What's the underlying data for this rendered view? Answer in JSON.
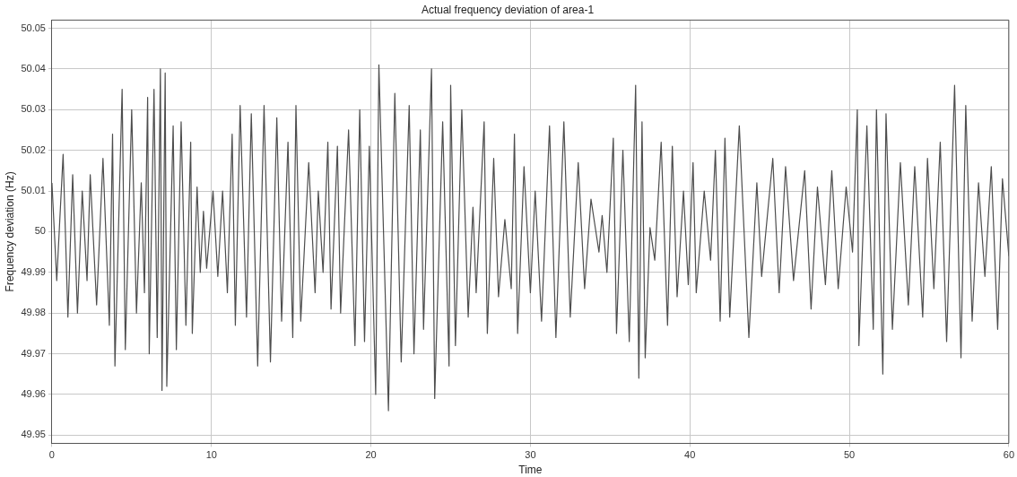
{
  "chart_data": {
    "type": "line",
    "title": "Actual frequency deviation of area-1",
    "xlabel": "Time",
    "ylabel": "Frequency deviation (Hz)",
    "xlim": [
      0,
      60
    ],
    "xticks": [
      0,
      10,
      20,
      30,
      40,
      50,
      60
    ],
    "ylim": [
      49.948,
      50.052
    ],
    "yticks": [
      49.95,
      49.96,
      49.97,
      49.98,
      49.99,
      50,
      50.01,
      50.02,
      50.03,
      50.04,
      50.05
    ],
    "grid": true,
    "legend": false,
    "marker": "none",
    "line_style": "solid",
    "series": [
      {
        "color": "#4d4d4d",
        "x": [
          0,
          0.3,
          0.7,
          1.0,
          1.3,
          1.6,
          1.9,
          2.2,
          2.4,
          2.8,
          3.2,
          3.6,
          3.8,
          3.95,
          4.4,
          4.6,
          5.0,
          5.3,
          5.6,
          5.8,
          6.0,
          6.1,
          6.4,
          6.6,
          6.8,
          6.9,
          7.1,
          7.2,
          7.6,
          7.8,
          8.1,
          8.4,
          8.7,
          8.8,
          9.1,
          9.3,
          9.5,
          9.7,
          10.1,
          10.4,
          10.7,
          11.0,
          11.3,
          11.5,
          11.8,
          12.2,
          12.5,
          12.9,
          13.3,
          13.7,
          14.1,
          14.4,
          14.8,
          15.1,
          15.3,
          15.6,
          16.1,
          16.5,
          16.7,
          17.0,
          17.3,
          17.5,
          17.9,
          18.1,
          18.6,
          19.0,
          19.3,
          19.6,
          19.9,
          20.3,
          20.5,
          21.1,
          21.5,
          21.9,
          22.4,
          22.7,
          23.1,
          23.3,
          23.8,
          24.0,
          24.5,
          24.9,
          25.0,
          25.3,
          25.7,
          26.1,
          26.4,
          26.6,
          27.1,
          27.3,
          27.7,
          28.0,
          28.4,
          28.8,
          29.0,
          29.2,
          29.6,
          30.0,
          30.3,
          30.7,
          31.2,
          31.6,
          32.1,
          32.5,
          33.0,
          33.4,
          33.8,
          34.3,
          34.5,
          34.8,
          35.2,
          35.4,
          35.8,
          36.2,
          36.6,
          36.8,
          37.0,
          37.2,
          37.5,
          37.8,
          38.2,
          38.6,
          38.9,
          39.2,
          39.6,
          39.9,
          40.2,
          40.4,
          40.9,
          41.3,
          41.6,
          41.9,
          42.2,
          42.5,
          43.1,
          43.7,
          44.2,
          44.5,
          45.2,
          45.6,
          46.0,
          46.5,
          47.2,
          47.6,
          48.0,
          48.5,
          48.9,
          49.3,
          49.8,
          50.2,
          50.5,
          50.6,
          51.1,
          51.5,
          51.7,
          52.1,
          52.3,
          52.7,
          53.2,
          53.7,
          54.1,
          54.6,
          54.9,
          55.3,
          55.7,
          56.1,
          56.6,
          57.0,
          57.3,
          57.7,
          58.1,
          58.5,
          58.9,
          59.3,
          59.6,
          60.0
        ],
        "values": [
          50.012,
          49.988,
          50.019,
          49.979,
          50.014,
          49.98,
          50.01,
          49.988,
          50.014,
          49.982,
          50.018,
          49.977,
          50.024,
          49.967,
          50.035,
          49.971,
          50.03,
          49.98,
          50.012,
          49.985,
          50.033,
          49.97,
          50.035,
          49.974,
          50.04,
          49.961,
          50.039,
          49.962,
          50.026,
          49.971,
          50.027,
          49.977,
          50.022,
          49.975,
          50.011,
          49.99,
          50.005,
          49.991,
          50.01,
          49.989,
          50.01,
          49.985,
          50.024,
          49.977,
          50.031,
          49.979,
          50.029,
          49.967,
          50.031,
          49.968,
          50.028,
          49.978,
          50.022,
          49.974,
          50.031,
          49.978,
          50.017,
          49.985,
          50.01,
          49.99,
          50.022,
          49.981,
          50.021,
          49.98,
          50.025,
          49.972,
          50.03,
          49.973,
          50.021,
          49.96,
          50.041,
          49.956,
          50.034,
          49.968,
          50.031,
          49.97,
          50.025,
          49.976,
          50.04,
          49.959,
          50.027,
          49.967,
          50.036,
          49.972,
          50.03,
          49.979,
          50.006,
          49.985,
          50.027,
          49.975,
          50.018,
          49.984,
          50.003,
          49.986,
          50.024,
          49.975,
          50.016,
          49.985,
          50.01,
          49.978,
          50.026,
          49.974,
          50.027,
          49.979,
          50.017,
          49.986,
          50.008,
          49.995,
          50.004,
          49.99,
          50.023,
          49.975,
          50.02,
          49.973,
          50.036,
          49.964,
          50.027,
          49.969,
          50.001,
          49.993,
          50.022,
          49.977,
          50.021,
          49.984,
          50.01,
          49.987,
          50.017,
          49.985,
          50.01,
          49.993,
          50.02,
          49.978,
          50.023,
          49.979,
          50.026,
          49.974,
          50.012,
          49.989,
          50.018,
          49.985,
          50.016,
          49.988,
          50.015,
          49.981,
          50.011,
          49.987,
          50.015,
          49.986,
          50.011,
          49.995,
          50.03,
          49.972,
          50.026,
          49.976,
          50.03,
          49.965,
          50.029,
          49.976,
          50.017,
          49.982,
          50.016,
          49.979,
          50.018,
          49.986,
          50.022,
          49.973,
          50.036,
          49.969,
          50.031,
          49.978,
          50.012,
          49.989,
          50.016,
          49.976,
          50.013,
          49.994
        ]
      }
    ]
  }
}
